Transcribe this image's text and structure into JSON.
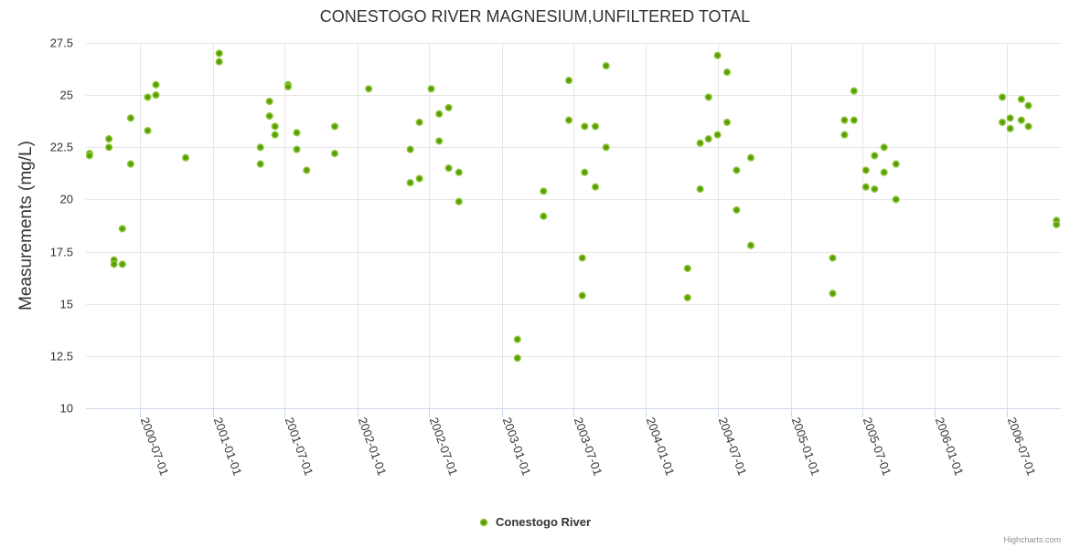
{
  "chart_data": {
    "type": "scatter",
    "title": "CONESTOGO RIVER MAGNESIUM,UNFILTERED TOTAL",
    "ylabel": "Measurements (mg/L)",
    "xlabel": "",
    "ylim": [
      10,
      27.5
    ],
    "yticks": [
      10,
      12.5,
      15,
      17.5,
      20,
      22.5,
      25,
      27.5
    ],
    "ytick_labels": [
      "10",
      "12.5",
      "15",
      "17.5",
      "20",
      "22.5",
      "25",
      "27.5"
    ],
    "xlim": [
      "2000-02-15",
      "2006-11-15"
    ],
    "xticks": [
      "2000-07-01",
      "2001-01-01",
      "2001-07-01",
      "2002-01-01",
      "2002-07-01",
      "2003-01-01",
      "2003-07-01",
      "2004-01-01",
      "2004-07-01",
      "2005-01-01",
      "2005-07-01",
      "2006-01-01",
      "2006-07-01"
    ],
    "legend": {
      "position": "bottom-center"
    },
    "grid": true,
    "series": [
      {
        "name": "Conestogo River",
        "color": "#5b9e00",
        "points": [
          [
            "2000-02-24",
            22.2
          ],
          [
            "2000-02-24",
            22.1
          ],
          [
            "2000-04-13",
            22.9
          ],
          [
            "2000-04-13",
            22.5
          ],
          [
            "2000-04-26",
            17.1
          ],
          [
            "2000-04-26",
            16.9
          ],
          [
            "2000-05-17",
            18.6
          ],
          [
            "2000-05-17",
            16.9
          ],
          [
            "2000-06-07",
            23.9
          ],
          [
            "2000-06-07",
            21.7
          ],
          [
            "2000-07-20",
            24.9
          ],
          [
            "2000-07-20",
            23.3
          ],
          [
            "2000-08-10",
            25.5
          ],
          [
            "2000-08-10",
            25.0
          ],
          [
            "2000-10-24",
            22.0
          ],
          [
            "2001-01-17",
            27.0
          ],
          [
            "2001-01-17",
            26.6
          ],
          [
            "2001-05-01",
            22.5
          ],
          [
            "2001-05-01",
            21.7
          ],
          [
            "2001-05-24",
            24.7
          ],
          [
            "2001-05-24",
            24.0
          ],
          [
            "2001-06-07",
            23.5
          ],
          [
            "2001-06-07",
            23.1
          ],
          [
            "2001-07-10",
            25.5
          ],
          [
            "2001-07-10",
            25.4
          ],
          [
            "2001-08-01",
            23.2
          ],
          [
            "2001-08-01",
            22.4
          ],
          [
            "2001-08-26",
            21.4
          ],
          [
            "2001-11-05",
            23.5
          ],
          [
            "2001-11-05",
            22.2
          ],
          [
            "2002-01-30",
            25.3
          ],
          [
            "2002-05-15",
            22.4
          ],
          [
            "2002-05-15",
            20.8
          ],
          [
            "2002-06-07",
            23.7
          ],
          [
            "2002-06-07",
            21.0
          ],
          [
            "2002-07-07",
            25.3
          ],
          [
            "2002-07-27",
            24.1
          ],
          [
            "2002-07-27",
            22.8
          ],
          [
            "2002-08-20",
            24.4
          ],
          [
            "2002-08-20",
            21.5
          ],
          [
            "2002-09-15",
            21.3
          ],
          [
            "2002-09-15",
            19.9
          ],
          [
            "2003-02-10",
            13.3
          ],
          [
            "2003-02-10",
            12.4
          ],
          [
            "2003-04-17",
            20.4
          ],
          [
            "2003-04-17",
            19.2
          ],
          [
            "2003-06-20",
            25.7
          ],
          [
            "2003-06-20",
            23.8
          ],
          [
            "2003-07-24",
            17.2
          ],
          [
            "2003-07-24",
            15.4
          ],
          [
            "2003-07-30",
            23.5
          ],
          [
            "2003-07-30",
            21.3
          ],
          [
            "2003-08-26",
            23.5
          ],
          [
            "2003-08-26",
            20.6
          ],
          [
            "2003-09-22",
            26.4
          ],
          [
            "2003-09-22",
            22.5
          ],
          [
            "2004-04-15",
            16.7
          ],
          [
            "2004-04-15",
            15.3
          ],
          [
            "2004-05-17",
            22.7
          ],
          [
            "2004-05-17",
            20.5
          ],
          [
            "2004-06-07",
            24.9
          ],
          [
            "2004-06-07",
            22.9
          ],
          [
            "2004-06-30",
            26.9
          ],
          [
            "2004-06-30",
            23.1
          ],
          [
            "2004-07-24",
            26.1
          ],
          [
            "2004-07-24",
            23.7
          ],
          [
            "2004-08-17",
            21.4
          ],
          [
            "2004-08-17",
            19.5
          ],
          [
            "2004-09-22",
            22.0
          ],
          [
            "2004-09-22",
            17.8
          ],
          [
            "2005-04-17",
            17.2
          ],
          [
            "2005-04-17",
            15.5
          ],
          [
            "2005-05-17",
            23.8
          ],
          [
            "2005-05-17",
            23.1
          ],
          [
            "2005-06-10",
            25.2
          ],
          [
            "2005-06-10",
            23.8
          ],
          [
            "2005-07-10",
            21.4
          ],
          [
            "2005-07-10",
            20.6
          ],
          [
            "2005-08-01",
            22.1
          ],
          [
            "2005-08-01",
            20.5
          ],
          [
            "2005-08-25",
            22.5
          ],
          [
            "2005-08-25",
            21.3
          ],
          [
            "2005-09-24",
            21.7
          ],
          [
            "2005-09-24",
            20.0
          ],
          [
            "2006-06-20",
            24.9
          ],
          [
            "2006-06-20",
            23.7
          ],
          [
            "2006-07-10",
            23.9
          ],
          [
            "2006-07-10",
            23.4
          ],
          [
            "2006-08-07",
            24.8
          ],
          [
            "2006-08-07",
            23.8
          ],
          [
            "2006-08-25",
            24.5
          ],
          [
            "2006-08-25",
            23.5
          ],
          [
            "2006-11-04",
            19.0
          ],
          [
            "2006-11-04",
            18.8
          ]
        ]
      }
    ],
    "credit": "Highcharts.com"
  }
}
